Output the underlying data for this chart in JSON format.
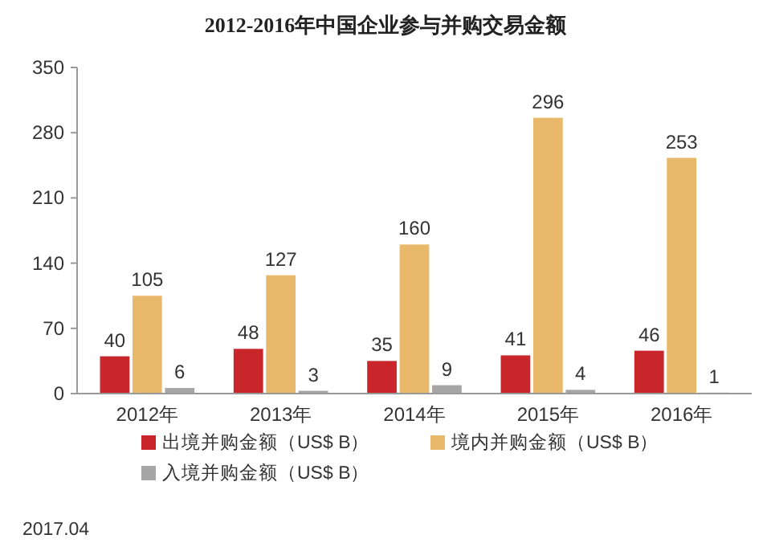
{
  "chart_data": {
    "type": "bar",
    "title": "2012-2016年中国企业参与并购交易金额",
    "categories": [
      "2012年",
      "2013年",
      "2014年",
      "2015年",
      "2016年"
    ],
    "series": [
      {
        "name": "出境并购金额（US$ B）",
        "color": "#c9262c",
        "values": [
          40,
          48,
          35,
          41,
          46
        ]
      },
      {
        "name": "境内并购金额（US$ B）",
        "color": "#e8b96a",
        "values": [
          105,
          127,
          160,
          296,
          253
        ]
      },
      {
        "name": "入境并购金额（US$ B）",
        "color": "#a6a6a6",
        "values": [
          6,
          3,
          9,
          4,
          1
        ]
      }
    ],
    "ylim": [
      0,
      350
    ],
    "yticks": [
      0,
      70,
      140,
      210,
      280,
      350
    ],
    "grid": false,
    "legend": "bottom",
    "data_labels": true,
    "annotations": [
      "2017.04"
    ]
  }
}
